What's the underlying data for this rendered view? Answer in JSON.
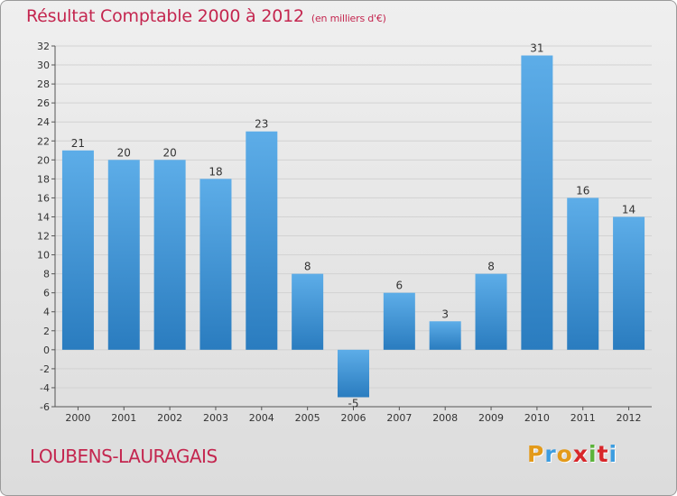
{
  "colors": {
    "title": "#c4264f",
    "bar_light": "#5dade8",
    "bar_dark": "#2a7cbf",
    "axis": "#555555",
    "logo": [
      "#e39a1a",
      "#3d9de0",
      "#e39a1a",
      "#d8262a",
      "#5bb33a",
      "#d8262a",
      "#3d9de0"
    ]
  },
  "header": {
    "title": "Résultat Comptable 2000 à 2012",
    "subtitle": "(en milliers d'€)"
  },
  "footer": {
    "place": "LOUBENS-LAURAGAIS",
    "logo_text": "Proxiti"
  },
  "chart_data": {
    "type": "bar",
    "title": "Résultat Comptable 2000 à 2012",
    "unit": "(en milliers d'€)",
    "categories": [
      "2000",
      "2001",
      "2002",
      "2003",
      "2004",
      "2005",
      "2006",
      "2007",
      "2008",
      "2009",
      "2010",
      "2011",
      "2012"
    ],
    "values": [
      21,
      20,
      20,
      18,
      23,
      8,
      -5,
      6,
      3,
      8,
      31,
      16,
      14
    ],
    "ylim": [
      -6,
      32
    ],
    "yticks": [
      -6,
      -4,
      -2,
      0,
      2,
      4,
      6,
      8,
      10,
      12,
      14,
      16,
      18,
      20,
      22,
      24,
      26,
      28,
      30,
      32
    ],
    "grid": true,
    "xlabel": "",
    "ylabel": ""
  }
}
